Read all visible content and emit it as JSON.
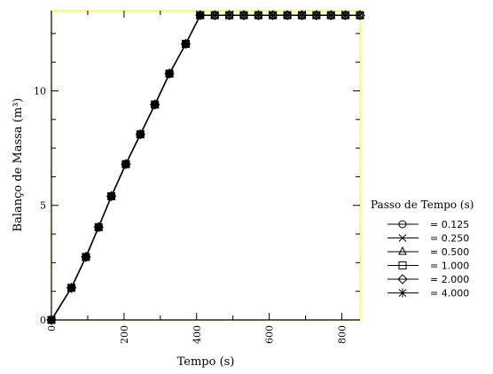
{
  "chart_data": {
    "type": "line",
    "xlabel": "Tempo (s)",
    "ylabel": "Balanço de Massa (m³)",
    "xlim": [
      0,
      850
    ],
    "ylim": [
      0,
      13.5
    ],
    "x_ticks": [
      "0",
      "200",
      "400",
      "600",
      "800"
    ],
    "x_tick_values": [
      0,
      200,
      400,
      600,
      800
    ],
    "y_ticks": [
      "0",
      "5",
      "10"
    ],
    "y_tick_values": [
      0,
      5,
      10
    ],
    "legend_title": "Passo de Tempo (s)",
    "legend_position": "right",
    "grid": false,
    "axes_frame_color": "#ffff00",
    "series": [
      {
        "name": "= 0.125",
        "marker": "circle",
        "x": [
          0,
          55,
          95,
          130,
          165,
          205,
          245,
          285,
          325,
          370,
          410,
          450,
          490,
          530,
          570,
          610,
          650,
          690,
          730,
          770,
          810,
          850
        ],
        "y": [
          0,
          1.4,
          2.75,
          4.05,
          5.4,
          6.8,
          8.1,
          9.4,
          10.75,
          12.05,
          13.3,
          13.3,
          13.3,
          13.3,
          13.3,
          13.3,
          13.3,
          13.3,
          13.3,
          13.3,
          13.3,
          13.3
        ]
      },
      {
        "name": "= 0.250",
        "marker": "x",
        "x": [
          0,
          55,
          95,
          130,
          165,
          205,
          245,
          285,
          325,
          370,
          410,
          450,
          490,
          530,
          570,
          610,
          650,
          690,
          730,
          770,
          810,
          850
        ],
        "y": [
          0,
          1.4,
          2.75,
          4.05,
          5.4,
          6.8,
          8.1,
          9.4,
          10.75,
          12.05,
          13.3,
          13.3,
          13.3,
          13.3,
          13.3,
          13.3,
          13.3,
          13.3,
          13.3,
          13.3,
          13.3,
          13.3
        ]
      },
      {
        "name": "= 0.500",
        "marker": "triangle",
        "x": [
          0,
          55,
          95,
          130,
          165,
          205,
          245,
          285,
          325,
          370,
          410,
          450,
          490,
          530,
          570,
          610,
          650,
          690,
          730,
          770,
          810,
          850
        ],
        "y": [
          0,
          1.4,
          2.75,
          4.05,
          5.4,
          6.8,
          8.1,
          9.4,
          10.75,
          12.05,
          13.3,
          13.3,
          13.3,
          13.3,
          13.3,
          13.3,
          13.3,
          13.3,
          13.3,
          13.3,
          13.3,
          13.3
        ]
      },
      {
        "name": "= 1.000",
        "marker": "square",
        "x": [
          0,
          55,
          95,
          130,
          165,
          205,
          245,
          285,
          325,
          370,
          410,
          450,
          490,
          530,
          570,
          610,
          650,
          690,
          730,
          770,
          810,
          850
        ],
        "y": [
          0,
          1.4,
          2.75,
          4.05,
          5.4,
          6.8,
          8.1,
          9.4,
          10.75,
          12.05,
          13.3,
          13.3,
          13.3,
          13.3,
          13.3,
          13.3,
          13.3,
          13.3,
          13.3,
          13.3,
          13.3,
          13.3
        ]
      },
      {
        "name": "= 2.000",
        "marker": "diamond",
        "x": [
          0,
          55,
          95,
          130,
          165,
          205,
          245,
          285,
          325,
          370,
          410,
          450,
          490,
          530,
          570,
          610,
          650,
          690,
          730,
          770,
          810,
          850
        ],
        "y": [
          0,
          1.4,
          2.75,
          4.05,
          5.4,
          6.8,
          8.1,
          9.4,
          10.75,
          12.05,
          13.3,
          13.3,
          13.3,
          13.3,
          13.3,
          13.3,
          13.3,
          13.3,
          13.3,
          13.3,
          13.3,
          13.3
        ]
      },
      {
        "name": "= 4.000",
        "marker": "asterisk",
        "x": [
          0,
          55,
          95,
          130,
          165,
          205,
          245,
          285,
          325,
          370,
          410,
          450,
          490,
          530,
          570,
          610,
          650,
          690,
          730,
          770,
          810,
          850
        ],
        "y": [
          0,
          1.4,
          2.75,
          4.05,
          5.4,
          6.8,
          8.1,
          9.4,
          10.75,
          12.05,
          13.3,
          13.3,
          13.3,
          13.3,
          13.3,
          13.3,
          13.3,
          13.3,
          13.3,
          13.3,
          13.3,
          13.3
        ]
      }
    ]
  }
}
